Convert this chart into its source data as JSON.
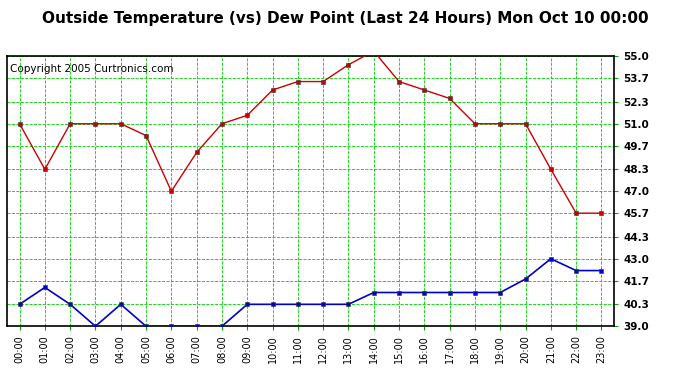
{
  "title": "Outside Temperature (vs) Dew Point (Last 24 Hours) Mon Oct 10 00:00",
  "copyright": "Copyright 2005 Curtronics.com",
  "x_labels": [
    "00:00",
    "01:00",
    "02:00",
    "03:00",
    "04:00",
    "05:00",
    "06:00",
    "07:00",
    "08:00",
    "09:00",
    "10:00",
    "11:00",
    "12:00",
    "13:00",
    "14:00",
    "15:00",
    "16:00",
    "17:00",
    "18:00",
    "19:00",
    "20:00",
    "21:00",
    "22:00",
    "23:00"
  ],
  "temp_data": [
    51.0,
    48.3,
    51.0,
    51.0,
    51.0,
    50.3,
    47.0,
    49.3,
    51.0,
    51.5,
    53.0,
    53.5,
    53.5,
    54.5,
    55.3,
    53.5,
    53.0,
    52.5,
    51.0,
    51.0,
    51.0,
    48.3,
    45.7,
    45.7
  ],
  "dew_data": [
    40.3,
    41.3,
    40.3,
    39.0,
    40.3,
    39.0,
    39.0,
    39.0,
    39.0,
    40.3,
    40.3,
    40.3,
    40.3,
    40.3,
    41.0,
    41.0,
    41.0,
    41.0,
    41.0,
    41.0,
    41.8,
    43.0,
    42.3,
    42.3
  ],
  "temp_color": "#cc0000",
  "dew_color": "#0000cc",
  "grid_color": "#00cc00",
  "background_color": "#ffffff",
  "ylim": [
    39.0,
    55.0
  ],
  "yticks": [
    39.0,
    40.3,
    41.7,
    43.0,
    44.3,
    45.7,
    47.0,
    48.3,
    49.7,
    51.0,
    52.3,
    53.7,
    55.0
  ],
  "title_fontsize": 11,
  "copyright_fontsize": 7.5
}
